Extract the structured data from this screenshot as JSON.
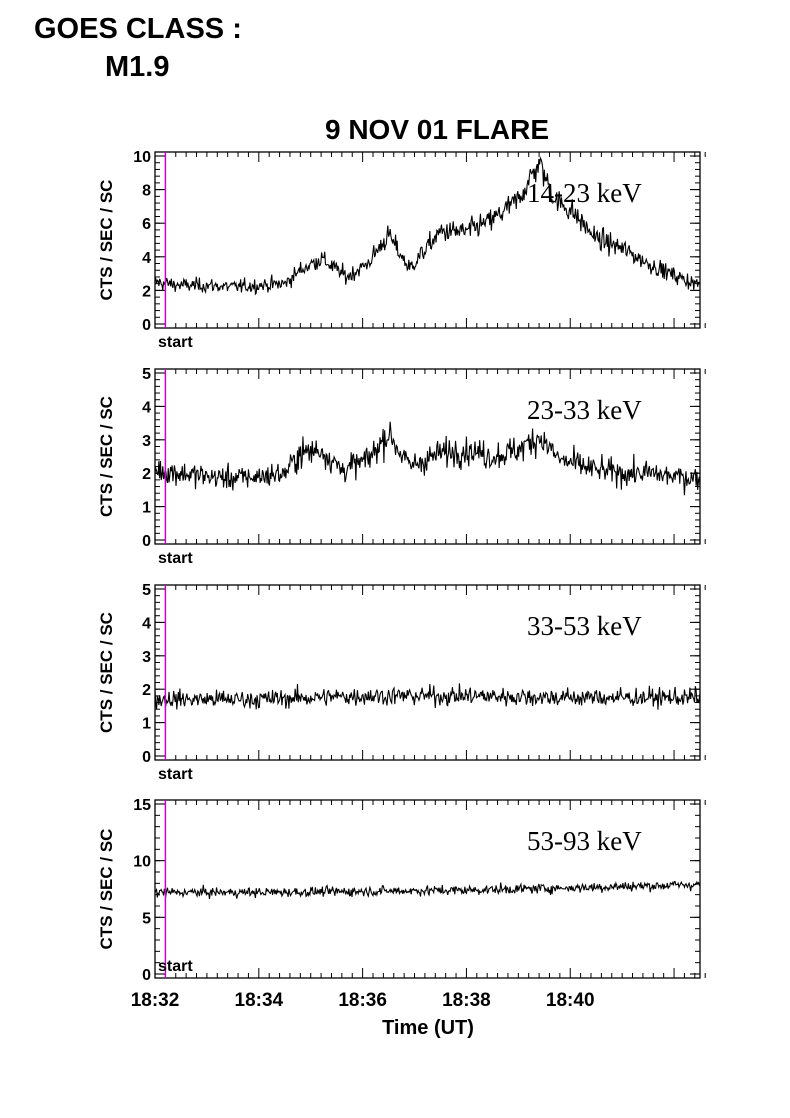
{
  "goes": {
    "label": "GOES CLASS :",
    "value": "M1.9"
  },
  "chart_data": {
    "type": "line",
    "title": "9 NOV 01 FLARE",
    "xlabel": "Time (UT)",
    "x_unit": "minutes after 18:32 UT",
    "xlim": [
      0,
      10.5
    ],
    "x_ticks": [
      0,
      2,
      4,
      6,
      8
    ],
    "x_tick_labels": [
      "18:32",
      "18:34",
      "18:36",
      "18:38",
      "18:40"
    ],
    "start_marker": {
      "x": 0.2,
      "label": "start",
      "color": "#cc00cc"
    },
    "grid": false,
    "panels": [
      {
        "band": "14-23 keV",
        "ylabel": "CTS / SEC / SC",
        "ylim": [
          0,
          10
        ],
        "y_ticks": [
          0,
          2,
          4,
          6,
          8,
          10
        ],
        "series": {
          "x": [
            0,
            0.5,
            1,
            1.5,
            2,
            2.5,
            2.8,
            3.2,
            3.7,
            4.1,
            4.5,
            4.9,
            5.5,
            6.0,
            6.5,
            7.0,
            7.4,
            7.7,
            8.0,
            8.5,
            9.0,
            9.5,
            10.0,
            10.5
          ],
          "values": [
            2.5,
            2.3,
            2.3,
            2.2,
            2.3,
            2.4,
            3.2,
            3.9,
            2.8,
            3.6,
            5.3,
            3.3,
            5.5,
            5.5,
            6.2,
            7.4,
            9.6,
            7.4,
            6.8,
            5.1,
            4.5,
            3.6,
            2.9,
            2.3
          ]
        }
      },
      {
        "band": "23-33 keV",
        "ylabel": "CTS / SEC / SC",
        "ylim": [
          0,
          5
        ],
        "y_ticks": [
          0,
          1,
          2,
          3,
          4,
          5
        ],
        "series": {
          "x": [
            0,
            0.5,
            1,
            1.5,
            2,
            2.5,
            2.8,
            3.2,
            3.6,
            4.1,
            4.5,
            4.9,
            5.5,
            6.0,
            6.5,
            7.0,
            7.4,
            7.8,
            8.5,
            9.0,
            9.5,
            10.0,
            10.5
          ],
          "values": [
            2.1,
            2.0,
            1.9,
            1.85,
            1.9,
            2.0,
            2.6,
            2.7,
            2.1,
            2.4,
            3.2,
            2.2,
            2.6,
            2.7,
            2.5,
            2.7,
            3.1,
            2.4,
            2.1,
            2.0,
            2.0,
            1.9,
            1.85
          ]
        }
      },
      {
        "band": "33-53 keV",
        "ylabel": "CTS / SEC / SC",
        "ylim": [
          0,
          5
        ],
        "y_ticks": [
          0,
          1,
          2,
          3,
          4,
          5
        ],
        "series": {
          "x": [
            0,
            2,
            4,
            6,
            8,
            10.5
          ],
          "values": [
            1.7,
            1.7,
            1.8,
            1.8,
            1.75,
            1.75
          ]
        }
      },
      {
        "band": "53-93 keV",
        "ylabel": "CTS / SEC / SC",
        "ylim": [
          0,
          15
        ],
        "y_ticks": [
          0,
          5,
          10,
          15
        ],
        "series": {
          "x": [
            0,
            2,
            4,
            6,
            8,
            10.5
          ],
          "values": [
            7.2,
            7.2,
            7.3,
            7.4,
            7.6,
            7.9
          ]
        }
      }
    ]
  }
}
